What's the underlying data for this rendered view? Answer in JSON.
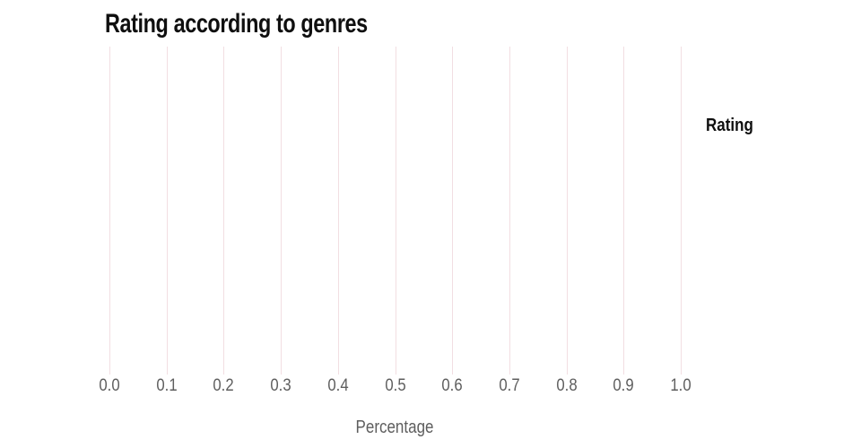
{
  "chart_data": {
    "type": "bar",
    "title": "Rating according to genres",
    "xlabel": "Percentage",
    "ylabel": "",
    "legend_title": "Rating",
    "legend_position": "right",
    "legend_entries": [],
    "xlim": [
      0.0,
      1.0
    ],
    "x_ticks": [
      0.0,
      0.1,
      0.2,
      0.3,
      0.4,
      0.5,
      0.6,
      0.7,
      0.8,
      0.9,
      1.0
    ],
    "x_tick_labels": [
      "0.0",
      "0.1",
      "0.2",
      "0.3",
      "0.4",
      "0.5",
      "0.6",
      "0.7",
      "0.8",
      "0.9",
      "1.0"
    ],
    "grid": "vertical-only",
    "categories": [],
    "series": []
  },
  "colors": {
    "background": "#ffffff",
    "gridline": "#f2dee2",
    "tick_label": "#5e5e5e",
    "axis_label": "#5e5e5e",
    "title": "#0f0f0f",
    "legend_title": "#0f0f0f"
  }
}
